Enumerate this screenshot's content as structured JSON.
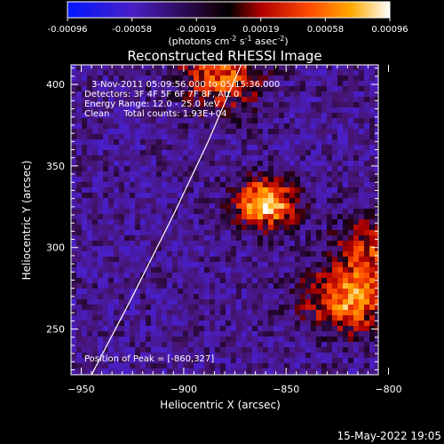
{
  "colorbar": {
    "ticks": [
      "-0.00096",
      "-0.00058",
      "-0.00019",
      "0.00019",
      "0.00058",
      "0.00096"
    ],
    "units_main": "(photons cm",
    "units_exp1": "-2",
    "units_mid": " s",
    "units_exp2": "-1",
    "units_end": " asec",
    "units_exp3": "-2",
    "units_close": ")"
  },
  "annotations": {
    "time_range": "3-Nov-2011 05:09:56.000 to 05:15:36.000",
    "detectors": "Detectors: 3F 4F 5F 6F 7F 8F, Att 0",
    "energy": "Energy Range: 12.0 - 25.0 keV",
    "clean": "Clean     Total counts: 1.93E+04",
    "peak": "Position of Peak = [-860,327]"
  },
  "footer_date": "15-May-2022 19:05",
  "chart_data": {
    "type": "heatmap",
    "title": "Reconstructed RHESSI Image",
    "xlabel": "Heliocentric X (arcsec)",
    "ylabel": "Heliocentric Y (arcsec)",
    "xlim": [
      -955,
      -805
    ],
    "ylim": [
      222,
      412
    ],
    "x_ticks": [
      -950,
      -900,
      -850,
      -800
    ],
    "y_ticks": [
      250,
      300,
      350,
      400
    ],
    "colorbar_range": [
      -0.00096,
      0.00096
    ],
    "colormap": "blue-purple-black-red-orange-yellow-white",
    "grid": false,
    "sources": [
      {
        "label": "peak",
        "x": -860,
        "y": 327,
        "intensity": 0.00096
      },
      {
        "x": -820,
        "y": 268,
        "intensity": 0.00075
      },
      {
        "x": -882,
        "y": 405,
        "intensity": 0.0006
      },
      {
        "x": -805,
        "y": 300,
        "intensity": 0.0005
      }
    ],
    "limb_curve": [
      [
        -945,
        222
      ],
      [
        -925,
        270
      ],
      [
        -905,
        320
      ],
      [
        -888,
        365
      ],
      [
        -872,
        412
      ]
    ]
  }
}
